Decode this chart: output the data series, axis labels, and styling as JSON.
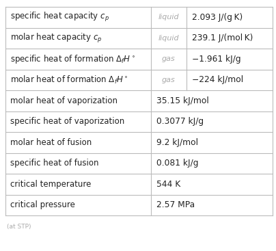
{
  "rows": [
    {
      "col1": "specific heat capacity $c_p$",
      "col2": "liquid",
      "col3": "2.093 J/(g K)",
      "has_col2": true
    },
    {
      "col1": "molar heat capacity $c_p$",
      "col2": "liquid",
      "col3": "239.1 J/(mol K)",
      "has_col2": true
    },
    {
      "col1": "specific heat of formation $\\Delta_f H^\\circ$",
      "col2": "gas",
      "col3": "−1.961 kJ/g",
      "has_col2": true
    },
    {
      "col1": "molar heat of formation $\\Delta_f H^\\circ$",
      "col2": "gas",
      "col3": "−224 kJ/mol",
      "has_col2": true
    },
    {
      "col1": "molar heat of vaporization",
      "col2": "",
      "col3": "35.15 kJ/mol",
      "has_col2": false
    },
    {
      "col1": "specific heat of vaporization",
      "col2": "",
      "col3": "0.3077 kJ/g",
      "has_col2": false
    },
    {
      "col1": "molar heat of fusion",
      "col2": "",
      "col3": "9.2 kJ/mol",
      "has_col2": false
    },
    {
      "col1": "specific heat of fusion",
      "col2": "",
      "col3": "0.081 kJ/g",
      "has_col2": false
    },
    {
      "col1": "critical temperature",
      "col2": "",
      "col3": "544 K",
      "has_col2": false
    },
    {
      "col1": "critical pressure",
      "col2": "",
      "col3": "2.57 MPa",
      "has_col2": false
    }
  ],
  "footnote": "(at STP)",
  "bg_color": "#ffffff",
  "line_color": "#bbbbbb",
  "text_color": "#222222",
  "secondary_text_color": "#aaaaaa",
  "value_color": "#222222",
  "font_size": 8.5,
  "value_font_size": 8.8
}
